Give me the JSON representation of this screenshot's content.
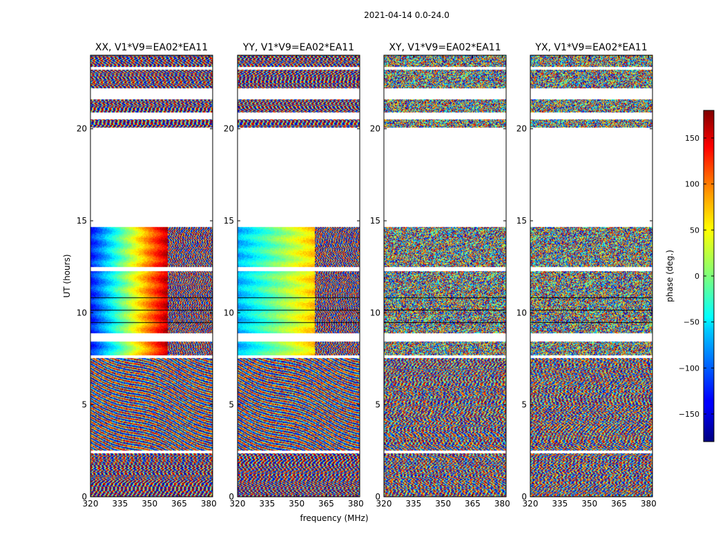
{
  "figure": {
    "suptitle": "2021-04-14 0.0-24.0",
    "xlabel": "frequency (MHz)",
    "ylabel": "UT (hours)",
    "colorbar_label": "phase (deg.)"
  },
  "chart_data": {
    "type": "heatmap",
    "x_range": [
      320,
      382
    ],
    "y_range": [
      0,
      24
    ],
    "x_ticks": [
      320,
      335,
      350,
      365,
      380
    ],
    "y_ticks": [
      0,
      5,
      10,
      15,
      20
    ],
    "colorbar": {
      "range": [
        -180,
        180
      ],
      "ticks": [
        -150,
        -100,
        -50,
        0,
        50,
        100,
        150
      ],
      "tick_labels": [
        "−150",
        "−100",
        "−50",
        "0",
        "50",
        "100",
        "150"
      ],
      "colormap": "jet"
    },
    "data_gaps_hours": [
      [
        2.35,
        2.5
      ],
      [
        7.55,
        7.7
      ],
      [
        8.45,
        8.9
      ],
      [
        12.25,
        12.5
      ],
      [
        14.65,
        20.05
      ],
      [
        20.5,
        20.9
      ],
      [
        21.6,
        22.2
      ],
      [
        23.2,
        23.35
      ]
    ],
    "panels": [
      {
        "title": "XX, V1*V9=EA02*EA11",
        "pattern": "calibrated"
      },
      {
        "title": "YY, V1*V9=EA02*EA11",
        "pattern": "calibrated"
      },
      {
        "title": "XY, V1*V9=EA02*EA11",
        "pattern": "noise"
      },
      {
        "title": "YX, V1*V9=EA02*EA11",
        "pattern": "noise"
      }
    ]
  }
}
